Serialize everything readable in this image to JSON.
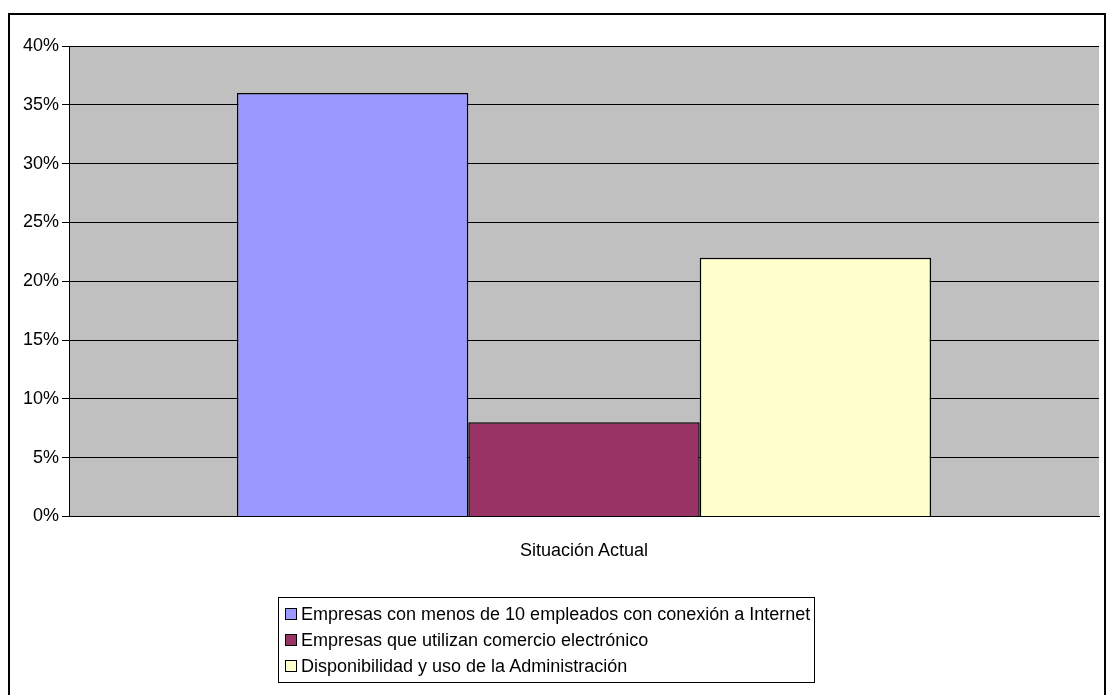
{
  "chart_data": {
    "type": "bar",
    "categories": [
      "Situación Actual"
    ],
    "series": [
      {
        "name": "Empresas con menos de 10 empleados con conexión a Internet",
        "color": "#9999ff",
        "values": [
          36
        ]
      },
      {
        "name": "Empresas que utilizan comercio electrónico",
        "color": "#993366",
        "values": [
          8
        ]
      },
      {
        "name": "Disponibilidad y uso de la Administración",
        "color": "#ffffcc",
        "values": [
          22
        ]
      }
    ],
    "ylim": [
      0,
      40
    ],
    "yticks": [
      {
        "value": 0,
        "label": "0%"
      },
      {
        "value": 5,
        "label": "5%"
      },
      {
        "value": 10,
        "label": "10%"
      },
      {
        "value": 15,
        "label": "15%"
      },
      {
        "value": 20,
        "label": "20%"
      },
      {
        "value": 25,
        "label": "25%"
      },
      {
        "value": 30,
        "label": "30%"
      },
      {
        "value": 35,
        "label": "35%"
      },
      {
        "value": 40,
        "label": "40%"
      }
    ],
    "grid": "y",
    "legend": "bottom"
  }
}
